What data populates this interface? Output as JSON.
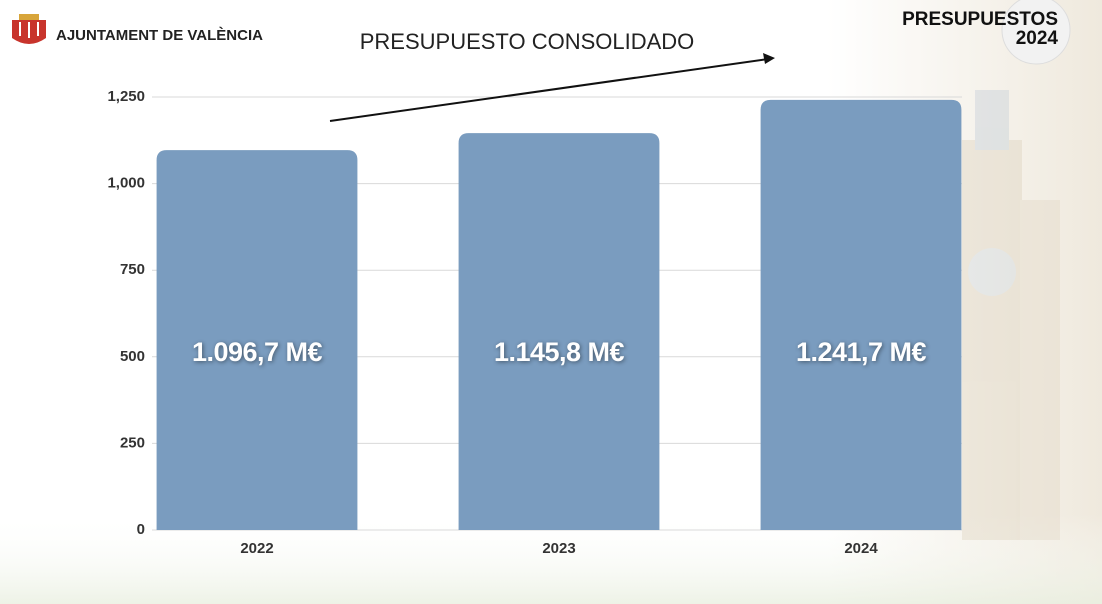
{
  "header": {
    "organization": "AJUNTAMENT DE VALÈNCIA",
    "badge": [
      "PRESUPUESTOS",
      "2024"
    ]
  },
  "chart_data": {
    "type": "bar",
    "title": "PRESUPUESTO CONSOLIDADO",
    "categories": [
      "2022",
      "2023",
      "2024"
    ],
    "values": [
      1096.7,
      1145.8,
      1241.7
    ],
    "value_labels": [
      "1.096,7 M€",
      "1.145,8 M€",
      "1.241,7 M€"
    ],
    "color": "#7a9cbf",
    "ylim": [
      0,
      1250
    ],
    "yticks": [
      0,
      250,
      500,
      750,
      {
        "value": 1000,
        "label": "1,000"
      },
      {
        "value": 1250,
        "label": "1,250"
      }
    ],
    "grid": true
  }
}
